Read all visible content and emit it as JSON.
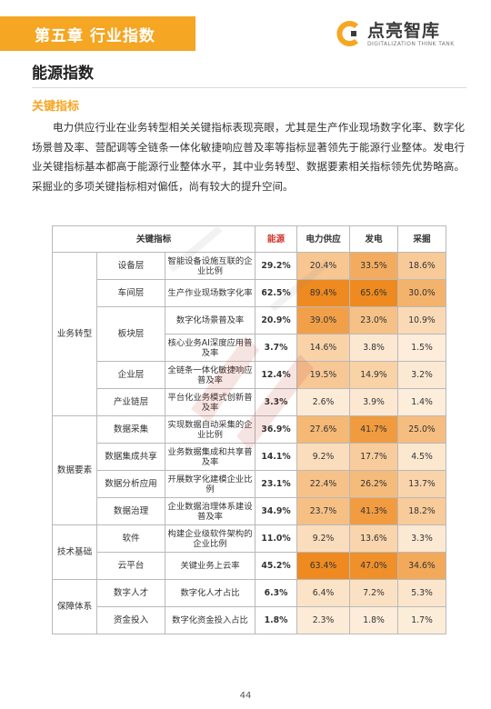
{
  "header": {
    "chapter": "第五章  行业指数",
    "accent": "#f5a623"
  },
  "logo": {
    "name": "点亮智库",
    "tagline": "DIGITALIZATION THINK TANK",
    "icon": "brand-c-icon"
  },
  "page": {
    "title": "能源指数",
    "section": "关键指标",
    "paragraph": "电力供应行业在业务转型相关关键指标表现亮眼，尤其是生产作业现场数字化率、数字化场景普及率、营配调等全链条一体化敏捷响应普及率等指标显著领先于能源行业整体。发电行业关键指标基本都高于能源行业整体水平，其中业务转型、数据要素相关指标领先优势略高。采掘业的多项关键指标相对偏低，尚有较大的提升空间。",
    "number": "44"
  },
  "table": {
    "headers": {
      "key_indicator": "关键指标",
      "energy": "能源",
      "power_supply": "电力供应",
      "generation": "发电",
      "mining": "采掘"
    },
    "categories": [
      {
        "name": "业务转型",
        "rows": [
          {
            "layer": "设备层",
            "metric": "智能设备设施互联的企业比例",
            "energy": "29.2%",
            "power_supply": "20.4%",
            "generation": "33.5%",
            "mining": "18.6%",
            "shade": [
              0.204,
              0.335,
              0.186
            ]
          },
          {
            "layer": "车间层",
            "metric": "生产作业现场数字化率",
            "energy": "62.5%",
            "power_supply": "89.4%",
            "generation": "65.6%",
            "mining": "30.0%",
            "shade": [
              0.894,
              0.656,
              0.3
            ]
          },
          {
            "layer": "板块层",
            "metric": "数字化场景普及率",
            "energy": "20.9%",
            "power_supply": "39.0%",
            "generation": "23.0%",
            "mining": "10.9%",
            "shade": [
              0.39,
              0.23,
              0.109
            ]
          },
          {
            "layer": "",
            "metric": "核心业务AI深度应用普及率",
            "energy": "3.7%",
            "power_supply": "14.6%",
            "generation": "3.8%",
            "mining": "1.5%",
            "shade": [
              0.146,
              0.038,
              0.015
            ]
          },
          {
            "layer": "企业层",
            "metric": "全链条一体化敏捷响应普及率",
            "energy": "12.4%",
            "power_supply": "19.5%",
            "generation": "14.9%",
            "mining": "3.2%",
            "shade": [
              0.195,
              0.149,
              0.032
            ]
          },
          {
            "layer": "产业链层",
            "metric": "平台化业务模式创新普及率",
            "energy": "3.3%",
            "power_supply": "2.6%",
            "generation": "3.9%",
            "mining": "1.4%",
            "shade": [
              0.026,
              0.039,
              0.014
            ]
          }
        ]
      },
      {
        "name": "数据要素",
        "rows": [
          {
            "layer": "数据采集",
            "metric": "实现数据自动采集的企业比例",
            "energy": "36.9%",
            "power_supply": "27.6%",
            "generation": "41.7%",
            "mining": "25.0%",
            "shade": [
              0.276,
              0.417,
              0.25
            ]
          },
          {
            "layer": "数据集成共享",
            "metric": "业务数据集成和共享普及率",
            "energy": "14.1%",
            "power_supply": "9.2%",
            "generation": "17.7%",
            "mining": "4.5%",
            "shade": [
              0.092,
              0.177,
              0.045
            ]
          },
          {
            "layer": "数据分析应用",
            "metric": "开展数字化建模企业比例",
            "energy": "23.1%",
            "power_supply": "22.4%",
            "generation": "26.2%",
            "mining": "13.7%",
            "shade": [
              0.224,
              0.262,
              0.137
            ]
          },
          {
            "layer": "数据治理",
            "metric": "企业数据治理体系建设普及率",
            "energy": "34.9%",
            "power_supply": "23.7%",
            "generation": "41.3%",
            "mining": "18.2%",
            "shade": [
              0.237,
              0.413,
              0.182
            ]
          }
        ]
      },
      {
        "name": "技术基础",
        "rows": [
          {
            "layer": "软件",
            "metric": "构建企业级软件架构的企业比例",
            "energy": "11.0%",
            "power_supply": "9.2%",
            "generation": "13.6%",
            "mining": "3.3%",
            "shade": [
              0.092,
              0.136,
              0.033
            ]
          },
          {
            "layer": "云平台",
            "metric": "关键业务上云率",
            "energy": "45.2%",
            "power_supply": "63.4%",
            "generation": "47.0%",
            "mining": "34.6%",
            "shade": [
              0.634,
              0.47,
              0.346
            ]
          }
        ]
      },
      {
        "name": "保障体系",
        "rows": [
          {
            "layer": "数字人才",
            "metric": "数字化人才占比",
            "energy": "6.3%",
            "power_supply": "6.4%",
            "generation": "7.2%",
            "mining": "5.3%",
            "shade": [
              0.064,
              0.072,
              0.053
            ]
          },
          {
            "layer": "资金投入",
            "metric": "数字化资金投入占比",
            "energy": "1.8%",
            "power_supply": "2.3%",
            "generation": "1.8%",
            "mining": "1.7%",
            "shade": [
              0.023,
              0.018,
              0.017
            ]
          }
        ]
      }
    ],
    "colors": {
      "heat_low": "#fdf0e0",
      "heat_high": "#ee8a1f",
      "energy_header": "#d0342c"
    }
  }
}
